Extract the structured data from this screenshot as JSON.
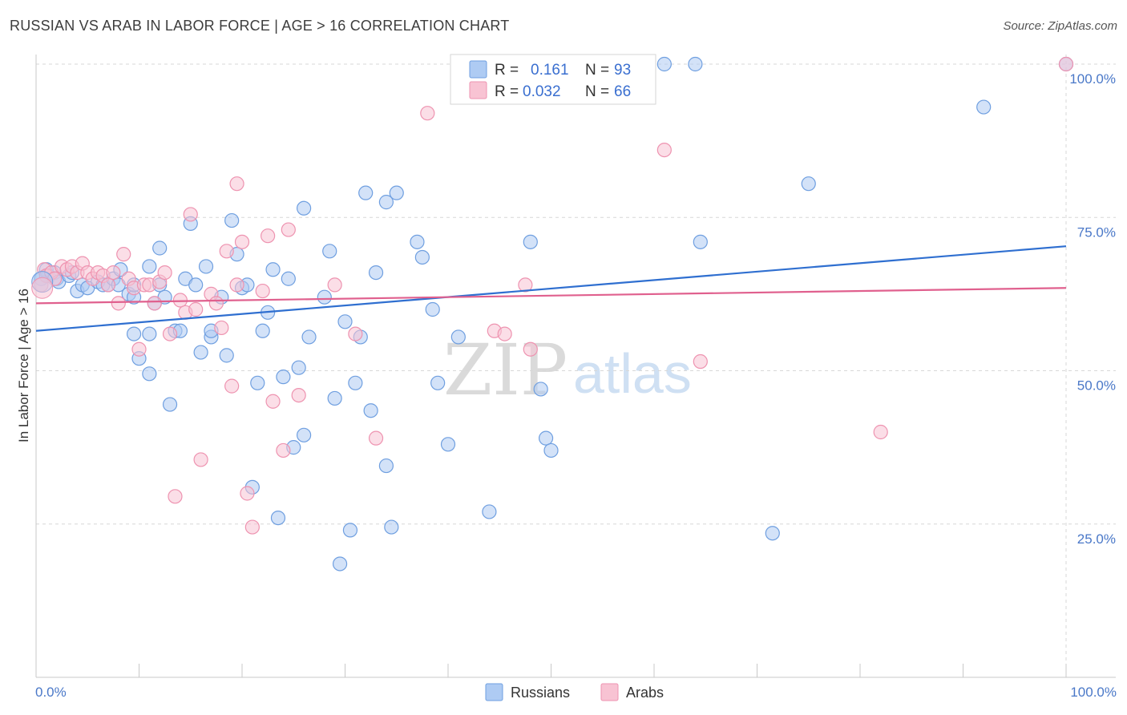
{
  "title": "RUSSIAN VS ARAB IN LABOR FORCE | AGE > 16 CORRELATION CHART",
  "source": "Source: ZipAtlas.com",
  "watermark": {
    "zip": "ZIP",
    "atlas": "atlas"
  },
  "colors": {
    "russians_fill": "#aecbf3",
    "russians_stroke": "#6f9fe0",
    "russians_line": "#2f6fd0",
    "arabs_fill": "#f8c3d3",
    "arabs_stroke": "#ee93b0",
    "arabs_line": "#e0608e",
    "grid": "#d7d7d7",
    "tick_text": "#4a78c8"
  },
  "legend": {
    "r_label": "R =",
    "n_label": "N =",
    "russians_r": "0.161",
    "russians_n": "93",
    "arabs_r": "0.032",
    "arabs_n": "66"
  },
  "bottom_legend": {
    "russians": "Russians",
    "arabs": "Arabs"
  },
  "chart_data": {
    "type": "scatter",
    "title": "RUSSIAN VS ARAB IN LABOR FORCE | AGE > 16 CORRELATION CHART",
    "xlabel": "",
    "ylabel": "In Labor Force | Age > 16",
    "xlim": [
      0,
      100
    ],
    "ylim": [
      0,
      105
    ],
    "x_tick_labels": [
      "0.0%",
      "100.0%"
    ],
    "y_ticks": [
      25,
      50,
      75,
      100
    ],
    "y_tick_labels": [
      "25.0%",
      "50.0%",
      "75.0%",
      "100.0%"
    ],
    "grid": true,
    "series": [
      {
        "name": "Russians",
        "r": 0.161,
        "n": 93,
        "trend": {
          "x": [
            0,
            100
          ],
          "y": [
            56.5,
            70.3
          ]
        },
        "points": [
          [
            0.5,
            65
          ],
          [
            1,
            66.5
          ],
          [
            1.2,
            65.5
          ],
          [
            1.8,
            66
          ],
          [
            2,
            65
          ],
          [
            2.2,
            64.5
          ],
          [
            3.2,
            65.5
          ],
          [
            3.5,
            66
          ],
          [
            4,
            63
          ],
          [
            4.5,
            64
          ],
          [
            5,
            63.5
          ],
          [
            6,
            64.5
          ],
          [
            6.5,
            64
          ],
          [
            7,
            64
          ],
          [
            7.5,
            65
          ],
          [
            8,
            64
          ],
          [
            8.2,
            66.5
          ],
          [
            9,
            62.5
          ],
          [
            9.5,
            62
          ],
          [
            9.5,
            64
          ],
          [
            9.5,
            56
          ],
          [
            10,
            52
          ],
          [
            11,
            67
          ],
          [
            11,
            56
          ],
          [
            11,
            49.5
          ],
          [
            11.5,
            61
          ],
          [
            12,
            64
          ],
          [
            12,
            70
          ],
          [
            12.5,
            62
          ],
          [
            13,
            44.5
          ],
          [
            13.5,
            56.5
          ],
          [
            14,
            56.5
          ],
          [
            14.5,
            65
          ],
          [
            15,
            74
          ],
          [
            15.5,
            64
          ],
          [
            16,
            53
          ],
          [
            16.5,
            67
          ],
          [
            17,
            55.5
          ],
          [
            17,
            56.5
          ],
          [
            18,
            62
          ],
          [
            18.5,
            52.5
          ],
          [
            19,
            74.5
          ],
          [
            19.5,
            69
          ],
          [
            20,
            63.5
          ],
          [
            20.5,
            64
          ],
          [
            21,
            31
          ],
          [
            21.5,
            48
          ],
          [
            22,
            56.5
          ],
          [
            22.5,
            59.5
          ],
          [
            23,
            66.5
          ],
          [
            23.5,
            26
          ],
          [
            24,
            49
          ],
          [
            24.5,
            65
          ],
          [
            25,
            37.5
          ],
          [
            25.5,
            50.5
          ],
          [
            26,
            39.5
          ],
          [
            26,
            76.5
          ],
          [
            26.5,
            55.5
          ],
          [
            28,
            62
          ],
          [
            28.5,
            69.5
          ],
          [
            29,
            45.5
          ],
          [
            29.5,
            18.5
          ],
          [
            30,
            58
          ],
          [
            30.5,
            24
          ],
          [
            31,
            48
          ],
          [
            31.5,
            55.5
          ],
          [
            32,
            79
          ],
          [
            32.5,
            43.5
          ],
          [
            33,
            66
          ],
          [
            34,
            77.5
          ],
          [
            34,
            34.5
          ],
          [
            34.5,
            24.5
          ],
          [
            35,
            79
          ],
          [
            37,
            71
          ],
          [
            37.5,
            68.5
          ],
          [
            38.5,
            60
          ],
          [
            39,
            48
          ],
          [
            40,
            38
          ],
          [
            41,
            55.5
          ],
          [
            44,
            27
          ],
          [
            48,
            71
          ],
          [
            49,
            47
          ],
          [
            49.5,
            39
          ],
          [
            50,
            37
          ],
          [
            61,
            100
          ],
          [
            64,
            100
          ],
          [
            64.5,
            71
          ],
          [
            71.5,
            23.5
          ],
          [
            75,
            80.5
          ],
          [
            92,
            93
          ],
          [
            100,
            100
          ]
        ]
      },
      {
        "name": "Arabs",
        "r": 0.032,
        "n": 66,
        "trend": {
          "x": [
            0,
            100
          ],
          "y": [
            61,
            63.5
          ]
        },
        "points": [
          [
            0.5,
            64
          ],
          [
            0.8,
            66.5
          ],
          [
            1,
            65.5
          ],
          [
            1.5,
            66
          ],
          [
            1.8,
            65
          ],
          [
            2.5,
            67
          ],
          [
            3,
            66.5
          ],
          [
            3.5,
            67
          ],
          [
            4,
            66
          ],
          [
            4.5,
            67.5
          ],
          [
            5,
            66
          ],
          [
            5.5,
            65
          ],
          [
            6,
            66
          ],
          [
            6.5,
            65.5
          ],
          [
            7,
            64
          ],
          [
            7.5,
            66
          ],
          [
            8,
            61
          ],
          [
            8.5,
            69
          ],
          [
            9,
            65
          ],
          [
            9.5,
            63.5
          ],
          [
            10,
            53.5
          ],
          [
            10.5,
            64
          ],
          [
            11,
            64
          ],
          [
            11.5,
            61
          ],
          [
            12,
            64.5
          ],
          [
            12.5,
            66
          ],
          [
            13,
            56
          ],
          [
            13.5,
            29.5
          ],
          [
            14,
            61.5
          ],
          [
            14.5,
            59.5
          ],
          [
            15,
            75.5
          ],
          [
            15.5,
            60
          ],
          [
            16,
            35.5
          ],
          [
            17,
            62.5
          ],
          [
            17.5,
            61
          ],
          [
            18,
            57
          ],
          [
            18.5,
            69.5
          ],
          [
            19,
            47.5
          ],
          [
            19.5,
            64
          ],
          [
            19.5,
            80.5
          ],
          [
            20,
            71
          ],
          [
            20.5,
            30
          ],
          [
            21,
            24.5
          ],
          [
            22,
            63
          ],
          [
            22.5,
            72
          ],
          [
            23,
            45
          ],
          [
            24,
            37
          ],
          [
            24.5,
            73
          ],
          [
            25.5,
            46
          ],
          [
            29,
            64
          ],
          [
            31,
            56
          ],
          [
            33,
            39
          ],
          [
            38,
            92
          ],
          [
            44.5,
            56.5
          ],
          [
            45.5,
            56
          ],
          [
            47.5,
            64
          ],
          [
            48,
            53.5
          ],
          [
            61,
            86
          ],
          [
            64.5,
            51.5
          ],
          [
            82,
            40
          ],
          [
            100,
            100
          ]
        ]
      }
    ]
  }
}
